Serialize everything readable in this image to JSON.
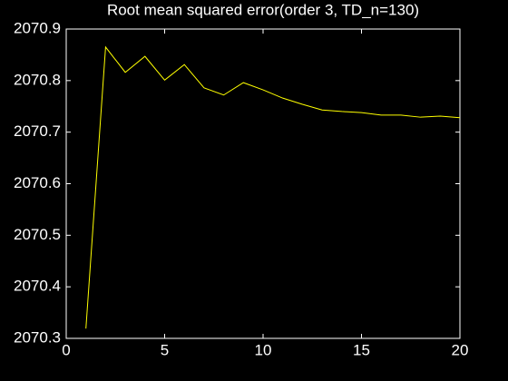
{
  "chart_data": {
    "type": "line",
    "title": "Root mean squared error(order 3, TD_n=130)",
    "x": [
      1,
      2,
      3,
      4,
      5,
      6,
      7,
      8,
      9,
      10,
      11,
      12,
      13,
      14,
      15,
      16,
      17,
      18,
      19,
      20
    ],
    "series": [
      {
        "color": "#ffff00",
        "values": [
          2070.319,
          2070.865,
          2070.816,
          2070.847,
          2070.801,
          2070.831,
          2070.786,
          2070.772,
          2070.796,
          2070.782,
          2070.766,
          2070.754,
          2070.743,
          2070.74,
          2070.738,
          2070.733,
          2070.733,
          2070.729,
          2070.731,
          2070.728
        ]
      }
    ],
    "xlim": [
      0,
      20
    ],
    "xticks": [
      0,
      5,
      10,
      15,
      20
    ],
    "ylim": [
      2070.3,
      2070.9
    ],
    "yticks": [
      2070.3,
      2070.4,
      2070.5,
      2070.6,
      2070.7,
      2070.8,
      2070.9
    ],
    "grid": false
  }
}
